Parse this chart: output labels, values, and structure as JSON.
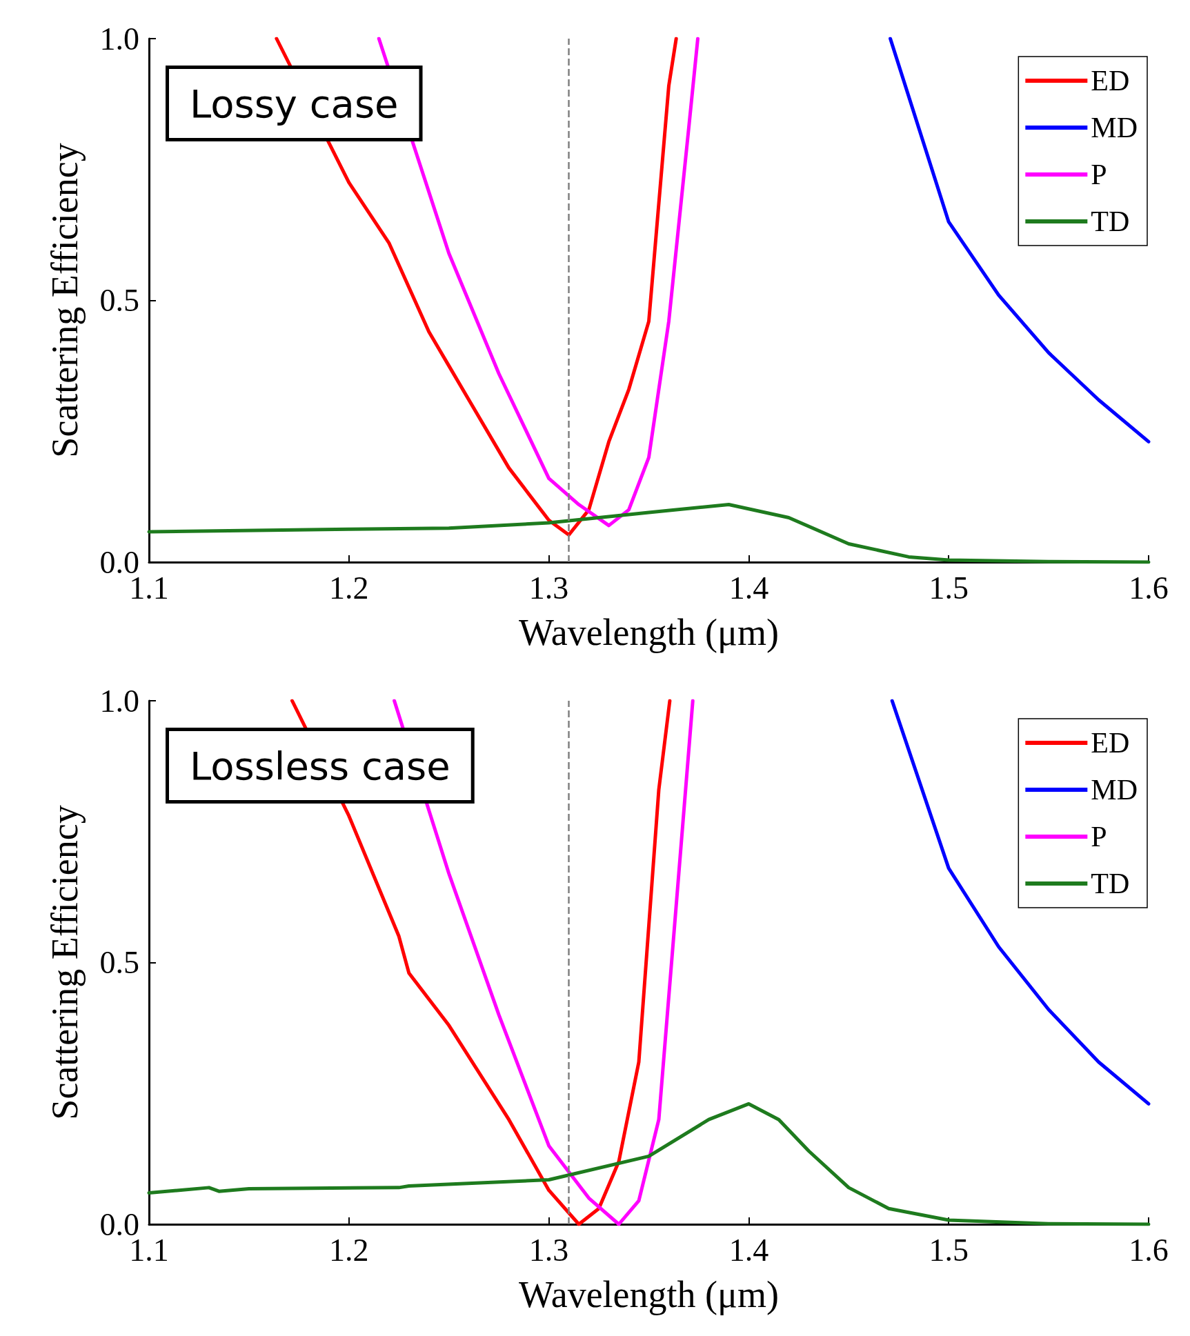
{
  "chart_data": [
    {
      "type": "line",
      "xlabel": "Wavelength (μm)",
      "ylabel": "Scattering Efficiency",
      "annotations": [
        "Lossy case"
      ],
      "xlim": [
        1.1,
        1.6
      ],
      "xticks": [
        1.1,
        1.2,
        1.3,
        1.4,
        1.5,
        1.6
      ],
      "ylim": [
        0,
        1
      ],
      "yticks": [
        {
          "value": 0,
          "label": "0.0"
        },
        {
          "value": 0.5,
          "label": "0.5"
        },
        {
          "value": 1,
          "label": "1.0"
        }
      ],
      "grid": false,
      "legend": "top right",
      "marker": "none",
      "line_style": "solid",
      "ref_lines": [
        {
          "axis": "x",
          "value": 1.31,
          "label": null,
          "color": "#808080",
          "line_style": "dashed"
        }
      ],
      "series": [
        {
          "name": "ED",
          "color": "#ff0000",
          "x": [
            1.1638,
            1.2,
            1.22,
            1.24,
            1.25,
            1.26,
            1.28,
            1.3,
            1.31,
            1.32,
            1.33,
            1.34,
            1.35,
            1.36,
            1.3637
          ],
          "values": [
            1.0,
            0.725,
            0.61,
            0.44,
            0.375,
            0.31,
            0.18,
            0.08,
            0.052,
            0.1,
            0.23,
            0.33,
            0.46,
            0.91,
            1.0
          ]
        },
        {
          "name": "MD",
          "color": "#0000ff",
          "x": [
            1.4708,
            1.5,
            1.525,
            1.55,
            1.575,
            1.6
          ],
          "values": [
            1.0,
            0.65,
            0.51,
            0.4,
            0.31,
            0.23
          ]
        },
        {
          "name": "P",
          "color": "#ff00ff",
          "x": [
            1.215,
            1.25,
            1.275,
            1.29,
            1.3,
            1.315,
            1.33,
            1.34,
            1.35,
            1.36,
            1.37,
            1.3745
          ],
          "values": [
            1.0,
            0.59,
            0.36,
            0.24,
            0.16,
            0.11,
            0.07,
            0.1,
            0.2,
            0.46,
            0.83,
            1.0
          ]
        },
        {
          "name": "TD",
          "color": "#1e7b1e",
          "x": [
            1.1,
            1.2,
            1.25,
            1.3,
            1.35,
            1.39,
            1.42,
            1.45,
            1.48,
            1.5,
            1.55,
            1.6
          ],
          "values": [
            0.058,
            0.063,
            0.065,
            0.075,
            0.095,
            0.11,
            0.085,
            0.035,
            0.01,
            0.004,
            0.001,
            0
          ]
        }
      ]
    },
    {
      "type": "line",
      "xlabel": "Wavelength (μm)",
      "ylabel": "Scattering Efficiency",
      "annotations": [
        "Lossless case"
      ],
      "xlim": [
        1.1,
        1.6
      ],
      "xticks": [
        1.1,
        1.2,
        1.3,
        1.4,
        1.5,
        1.6
      ],
      "ylim": [
        0,
        1
      ],
      "yticks": [
        {
          "value": 0,
          "label": "0.0"
        },
        {
          "value": 0.5,
          "label": "0.5"
        },
        {
          "value": 1,
          "label": "1.0"
        }
      ],
      "grid": false,
      "legend": "top right",
      "marker": "none",
      "line_style": "solid",
      "ref_lines": [
        {
          "axis": "x",
          "value": 1.31,
          "label": null,
          "color": "#808080",
          "line_style": "dashed"
        }
      ],
      "series": [
        {
          "name": "ED",
          "color": "#ff0000",
          "x": [
            1.1716,
            1.2,
            1.225,
            1.23,
            1.25,
            1.28,
            1.3,
            1.315,
            1.325,
            1.335,
            1.345,
            1.355,
            1.3605
          ],
          "values": [
            1.0,
            0.78,
            0.55,
            0.48,
            0.38,
            0.2,
            0.065,
            0,
            0.03,
            0.12,
            0.31,
            0.83,
            1.0
          ]
        },
        {
          "name": "MD",
          "color": "#0000ff",
          "x": [
            1.4717,
            1.5,
            1.525,
            1.55,
            1.575,
            1.6
          ],
          "values": [
            1.0,
            0.68,
            0.53,
            0.41,
            0.31,
            0.23
          ]
        },
        {
          "name": "P",
          "color": "#ff00ff",
          "x": [
            1.2227,
            1.25,
            1.275,
            1.3,
            1.32,
            1.335,
            1.345,
            1.355,
            1.365,
            1.372
          ],
          "values": [
            1.0,
            0.67,
            0.4,
            0.15,
            0.05,
            0,
            0.045,
            0.2,
            0.67,
            1.0
          ]
        },
        {
          "name": "TD",
          "color": "#1e7b1e",
          "x": [
            1.1,
            1.13,
            1.135,
            1.15,
            1.225,
            1.23,
            1.3,
            1.35,
            1.38,
            1.4,
            1.415,
            1.43,
            1.45,
            1.47,
            1.5,
            1.55,
            1.6
          ],
          "values": [
            0.06,
            0.07,
            0.063,
            0.068,
            0.07,
            0.073,
            0.085,
            0.13,
            0.2,
            0.23,
            0.2,
            0.14,
            0.07,
            0.03,
            0.008,
            0.001,
            0
          ]
        }
      ]
    }
  ]
}
